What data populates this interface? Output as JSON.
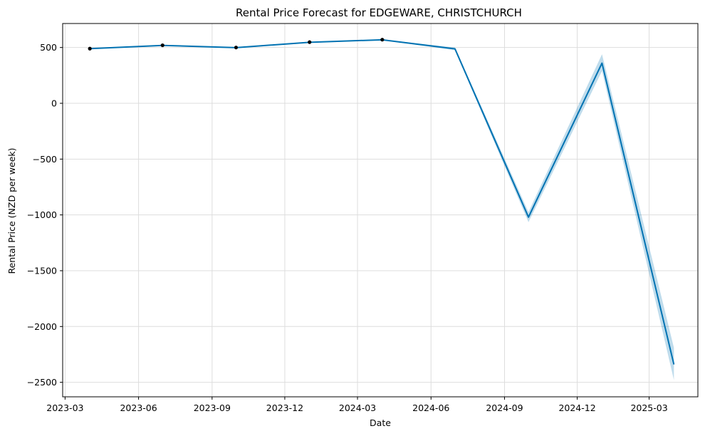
{
  "chart_data": {
    "type": "line",
    "title": "Rental Price Forecast for EDGEWARE, CHRISTCHURCH",
    "xlabel": "Date",
    "ylabel": "Rental Price (NZD per week)",
    "x_tick_labels": [
      "2023-03",
      "2023-06",
      "2023-09",
      "2023-12",
      "2024-03",
      "2024-06",
      "2024-09",
      "2024-12",
      "2025-03"
    ],
    "x_ticks": [
      "2023-03-01",
      "2023-06-01",
      "2023-09-01",
      "2023-12-01",
      "2024-03-01",
      "2024-06-01",
      "2024-09-01",
      "2024-12-01",
      "2025-03-01"
    ],
    "y_ticks": [
      500,
      0,
      -500,
      -1000,
      -1500,
      -2000,
      -2500
    ],
    "y_tick_labels": [
      "500",
      "0",
      "−500",
      "−1000",
      "−1500",
      "−2000",
      "−2500"
    ],
    "xlim": [
      "2023-02-26",
      "2025-05-01"
    ],
    "ylim": [
      -2630,
      715
    ],
    "grid": true,
    "colors": {
      "line": "#0072B2",
      "band": "#0072B2",
      "points": "#000000",
      "grid": "#dddddd"
    },
    "observed": {
      "x": [
        "2023-04-01",
        "2023-07-01",
        "2023-10-01",
        "2024-01-01",
        "2024-04-01"
      ],
      "y": [
        490,
        520,
        500,
        548,
        570
      ]
    },
    "forecast": {
      "x": [
        "2023-04-01",
        "2023-07-01",
        "2023-10-01",
        "2024-01-01",
        "2024-04-01",
        "2024-07-01",
        "2024-10-01",
        "2025-01-01",
        "2025-04-01"
      ],
      "y": [
        490,
        519,
        499,
        547,
        569,
        488,
        -1020,
        360,
        -2340
      ],
      "lower": [
        488,
        517,
        497,
        544,
        566,
        476,
        -1065,
        290,
        -2480
      ],
      "upper": [
        492,
        521,
        501,
        550,
        572,
        500,
        -975,
        440,
        -2190
      ]
    }
  }
}
